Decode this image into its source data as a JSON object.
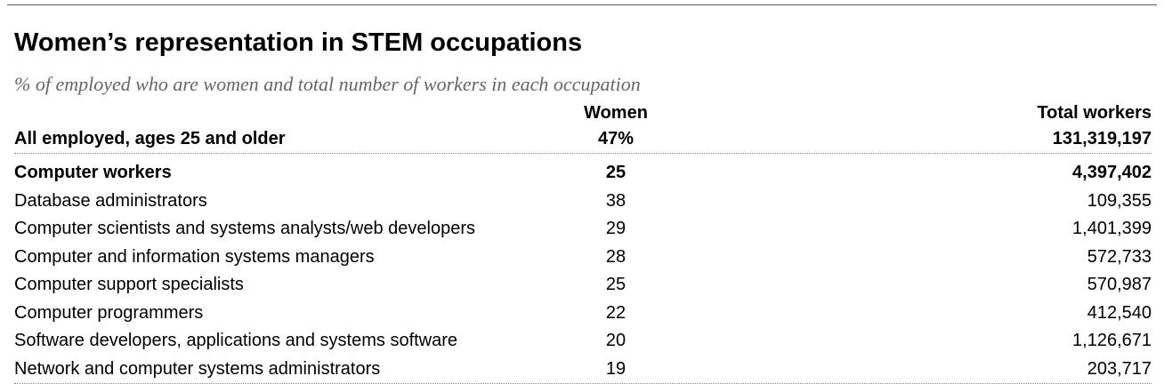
{
  "title": "Women’s representation in STEM occupations",
  "subtitle": "% of employed who are women and total number of workers in each occupation",
  "chart_data": {
    "type": "table",
    "columns": [
      "",
      "Women",
      "Total workers"
    ],
    "rows": [
      {
        "label": "All employed, ages 25 and older",
        "women": "47%",
        "total": "131,319,197",
        "style": "bold"
      },
      {
        "label": "Computer workers",
        "women": "25",
        "total": "4,397,402",
        "style": "bold"
      },
      {
        "label": "Database administrators",
        "women": "38",
        "total": "109,355",
        "style": "normal"
      },
      {
        "label": "Computer scientists and systems analysts/web developers",
        "women": "29",
        "total": "1,401,399",
        "style": "normal"
      },
      {
        "label": "Computer and information systems managers",
        "women": "28",
        "total": "572,733",
        "style": "normal"
      },
      {
        "label": "Computer support specialists",
        "women": "25",
        "total": "570,987",
        "style": "normal"
      },
      {
        "label": "Computer programmers",
        "women": "22",
        "total": "412,540",
        "style": "normal"
      },
      {
        "label": "Software developers, applications and systems software",
        "women": "20",
        "total": "1,126,671",
        "style": "normal"
      },
      {
        "label": "Network and computer systems administrators",
        "women": "19",
        "total": "203,717",
        "style": "normal"
      }
    ]
  }
}
